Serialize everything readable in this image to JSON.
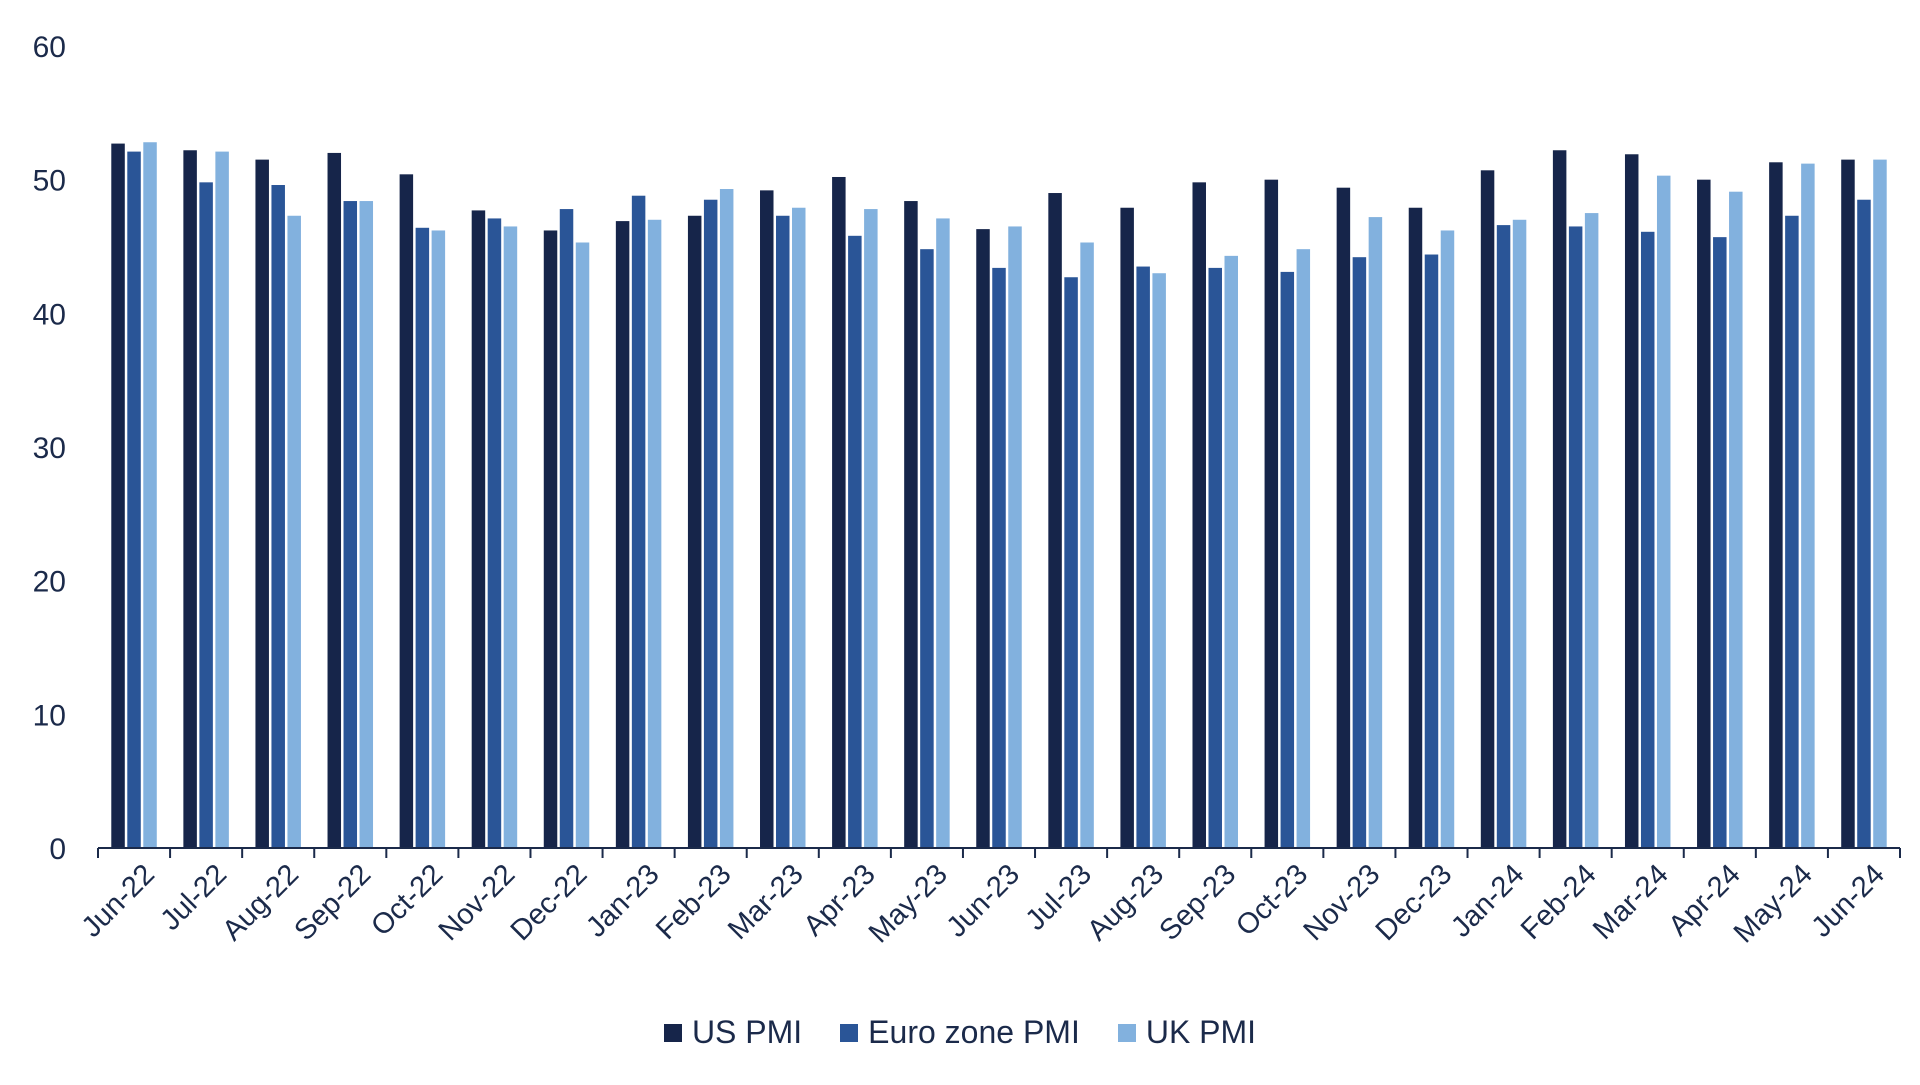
{
  "chart_data": {
    "type": "bar",
    "title": "",
    "xlabel": "",
    "ylabel": "",
    "ylim": [
      0,
      60
    ],
    "yticks": [
      "0",
      "10",
      "20",
      "30",
      "40",
      "50",
      "60"
    ],
    "grid": false,
    "legend_position": "bottom",
    "categories": [
      "Jun-22",
      "Jul-22",
      "Aug-22",
      "Sep-22",
      "Oct-22",
      "Nov-22",
      "Dec-22",
      "Jan-23",
      "Feb-23",
      "Mar-23",
      "Apr-23",
      "May-23",
      "Jun-23",
      "Jul-23",
      "Aug-23",
      "Sep-23",
      "Oct-23",
      "Nov-23",
      "Dec-23",
      "Jan-24",
      "Feb-24",
      "Mar-24",
      "Apr-24",
      "May-24",
      "Jun-24"
    ],
    "series": [
      {
        "name": "US PMI",
        "color": "#16254a",
        "values": [
          52.7,
          52.2,
          51.5,
          52.0,
          50.4,
          47.7,
          46.2,
          46.9,
          47.3,
          49.2,
          50.2,
          48.4,
          46.3,
          49.0,
          47.9,
          49.8,
          50.0,
          49.4,
          47.9,
          50.7,
          52.2,
          51.9,
          50.0,
          51.3,
          51.5
        ]
      },
      {
        "name": "Euro zone PMI",
        "color": "#2a5597",
        "values": [
          52.1,
          49.8,
          49.6,
          48.4,
          46.4,
          47.1,
          47.8,
          48.8,
          48.5,
          47.3,
          45.8,
          44.8,
          43.4,
          42.7,
          43.5,
          43.4,
          43.1,
          44.2,
          44.4,
          46.6,
          46.5,
          46.1,
          45.7,
          47.3,
          48.5
        ]
      },
      {
        "name": "UK PMI",
        "color": "#82b1de",
        "values": [
          52.8,
          52.1,
          47.3,
          48.4,
          46.2,
          46.5,
          45.3,
          47.0,
          49.3,
          47.9,
          47.8,
          47.1,
          46.5,
          45.3,
          43.0,
          44.3,
          44.8,
          47.2,
          46.2,
          47.0,
          47.5,
          50.3,
          49.1,
          51.2,
          51.5
        ]
      }
    ]
  }
}
